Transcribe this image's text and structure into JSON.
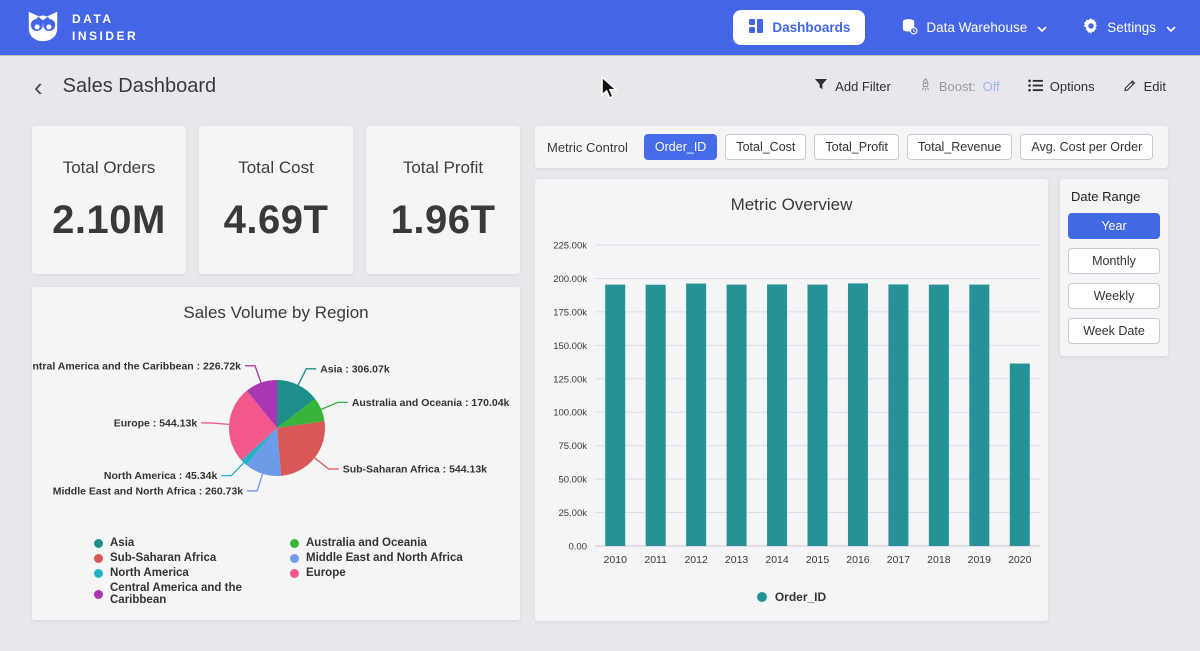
{
  "topnav": {
    "brand_line1": "DATA",
    "brand_line2": "INSIDER",
    "dashboards_label": "Dashboards",
    "data_warehouse_label": "Data Warehouse",
    "settings_label": "Settings"
  },
  "header": {
    "title": "Sales Dashboard",
    "add_filter_label": "Add Filter",
    "boost_label": "Boost:",
    "boost_state": "Off",
    "options_label": "Options",
    "edit_label": "Edit"
  },
  "kpis": [
    {
      "label": "Total Orders",
      "value": "2.10M"
    },
    {
      "label": "Total Cost",
      "value": "4.69T"
    },
    {
      "label": "Total Profit",
      "value": "1.96T"
    }
  ],
  "metric_control": {
    "label": "Metric Control",
    "options": [
      "Order_ID",
      "Total_Cost",
      "Total_Profit",
      "Total_Revenue",
      "Avg. Cost per Order"
    ],
    "selected": "Order_ID"
  },
  "date_range": {
    "label": "Date Range",
    "options": [
      "Year",
      "Monthly",
      "Weekly",
      "Week Date"
    ],
    "selected": "Year"
  },
  "colors": {
    "accent_blue": "#4365e6",
    "bar_teal": "#249296",
    "boost_off_text": "#a6b5f0"
  },
  "chart_data": [
    {
      "type": "pie",
      "title": "Sales Volume by Region",
      "unit": "k",
      "legend_position": "bottom",
      "slices": [
        {
          "label": "Asia",
          "value": 306.07,
          "display": "306.07k",
          "color": "#1e8e8a"
        },
        {
          "label": "Australia and Oceania",
          "value": 170.04,
          "display": "170.04k",
          "color": "#38b43a"
        },
        {
          "label": "Sub-Saharan Africa",
          "value": 544.13,
          "display": "544.13k",
          "color": "#da5757"
        },
        {
          "label": "Middle East and North Africa",
          "value": 260.73,
          "display": "260.73k",
          "color": "#6c9be8"
        },
        {
          "label": "North America",
          "value": 45.34,
          "display": "45.34k",
          "color": "#22b2c4"
        },
        {
          "label": "Europe",
          "value": 544.13,
          "display": "544.13k",
          "color": "#f2578e"
        },
        {
          "label": "Central America and the Caribbean",
          "value": 226.72,
          "display": "226.72k",
          "color": "#a936b2"
        }
      ]
    },
    {
      "type": "bar",
      "title": "Metric Overview",
      "categories": [
        "2010",
        "2011",
        "2012",
        "2013",
        "2014",
        "2015",
        "2016",
        "2017",
        "2018",
        "2019",
        "2020"
      ],
      "series": [
        {
          "name": "Order_ID",
          "color": "#249296",
          "values": [
            195.4,
            195.3,
            196.2,
            195.4,
            195.5,
            195.4,
            196.3,
            195.5,
            195.4,
            195.4,
            136.4
          ]
        }
      ],
      "unit": "k",
      "ylim": [
        0,
        225
      ],
      "ytick_step": 25,
      "yticks": [
        {
          "value": 0,
          "label": "0.00"
        },
        {
          "value": 25,
          "label": "25.00k"
        },
        {
          "value": 50,
          "label": "50.00k"
        },
        {
          "value": 75,
          "label": "75.00k"
        },
        {
          "value": 100,
          "label": "100.00k"
        },
        {
          "value": 125,
          "label": "125.00k"
        },
        {
          "value": 150,
          "label": "150.00k"
        },
        {
          "value": 175,
          "label": "175.00k"
        },
        {
          "value": 200,
          "label": "200.00k"
        },
        {
          "value": 225,
          "label": "225.00k"
        }
      ],
      "legend": [
        "Order_ID"
      ],
      "grid": true
    }
  ]
}
